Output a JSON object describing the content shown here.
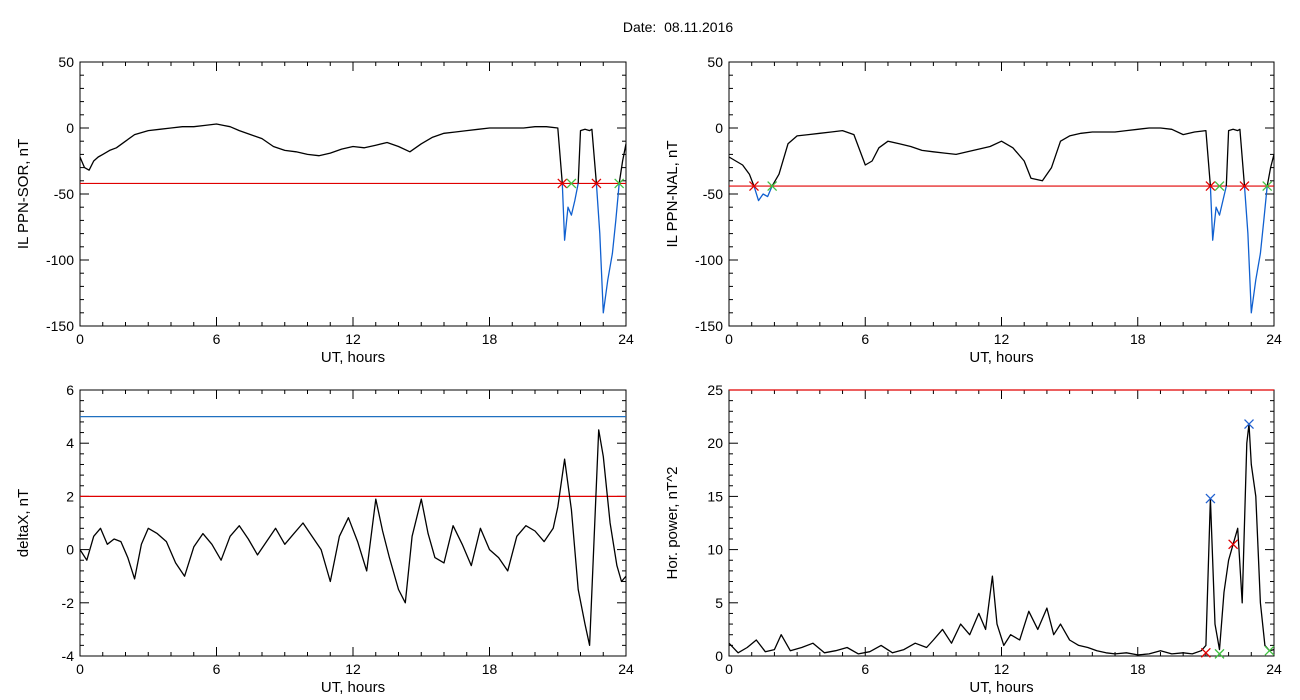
{
  "figure": {
    "date_label": "Date:",
    "date_value": "08.11.2016"
  },
  "chart_data": [
    {
      "type": "line",
      "xlabel": "UT, hours",
      "ylabel": "IL PPN-SOR, nT",
      "xlim": [
        0,
        24
      ],
      "ylim": [
        -150,
        50
      ],
      "xticks": [
        0,
        6,
        12,
        18,
        24
      ],
      "yticks": [
        -150,
        -100,
        -50,
        0,
        50
      ],
      "grid": false,
      "hlines": [
        {
          "y": -42,
          "color": "#e00000"
        }
      ],
      "series": [
        {
          "color": "#000000",
          "x": [
            0,
            0.2,
            0.4,
            0.6,
            0.8,
            1,
            1.3,
            1.6,
            2,
            2.4,
            3,
            3.5,
            4,
            4.5,
            5,
            5.5,
            6,
            6.3,
            6.6,
            7,
            7.5,
            8,
            8.5,
            9,
            9.5,
            10,
            10.5,
            11,
            11.5,
            12,
            12.5,
            13,
            13.5,
            14,
            14.5,
            15,
            15.5,
            16,
            16.5,
            17,
            17.5,
            18,
            18.5,
            19,
            19.5,
            20,
            20.5,
            21,
            21.2
          ],
          "y": [
            -22,
            -30,
            -32,
            -25,
            -22,
            -20,
            -17,
            -15,
            -10,
            -5,
            -2,
            -1,
            0,
            1,
            1,
            2,
            3,
            2,
            1,
            -2,
            -5,
            -8,
            -14,
            -17,
            -18,
            -20,
            -21,
            -19,
            -16,
            -14,
            -15,
            -13,
            -11,
            -14,
            -18,
            -12,
            -7,
            -4,
            -3,
            -2,
            -1,
            0,
            0,
            0,
            0,
            1,
            1,
            0,
            -42
          ]
        },
        {
          "color": "#1060d0",
          "x": [
            21.2,
            21.3,
            21.45,
            21.6,
            21.75,
            21.9
          ],
          "y": [
            -42,
            -85,
            -60,
            -66,
            -55,
            -42
          ]
        },
        {
          "color": "#000000",
          "x": [
            21.9,
            22.0,
            22.2,
            22.4,
            22.5,
            22.7
          ],
          "y": [
            -42,
            -2,
            -1,
            -2,
            -1,
            -42
          ]
        },
        {
          "color": "#1060d0",
          "x": [
            22.7,
            22.85,
            23.0,
            23.2,
            23.4,
            23.55,
            23.7
          ],
          "y": [
            -42,
            -80,
            -140,
            -115,
            -95,
            -70,
            -42
          ]
        },
        {
          "color": "#000000",
          "x": [
            23.7,
            23.85,
            24
          ],
          "y": [
            -42,
            -25,
            -12
          ]
        }
      ],
      "markers": [
        {
          "x": 21.2,
          "y": -42,
          "color": "#e00000"
        },
        {
          "x": 21.6,
          "y": -42,
          "color": "#40c040"
        },
        {
          "x": 22.7,
          "y": -42,
          "color": "#e00000"
        },
        {
          "x": 23.7,
          "y": -42,
          "color": "#40c040"
        }
      ]
    },
    {
      "type": "line",
      "xlabel": "UT, hours",
      "ylabel": "IL PPN-NAL, nT",
      "xlim": [
        0,
        24
      ],
      "ylim": [
        -150,
        50
      ],
      "xticks": [
        0,
        6,
        12,
        18,
        24
      ],
      "yticks": [
        -150,
        -100,
        -50,
        0,
        50
      ],
      "grid": false,
      "hlines": [
        {
          "y": -44,
          "color": "#e00000"
        }
      ],
      "series": [
        {
          "color": "#000000",
          "x": [
            0,
            0.3,
            0.6,
            0.9,
            1.1
          ],
          "y": [
            -22,
            -25,
            -28,
            -35,
            -44
          ]
        },
        {
          "color": "#1060d0",
          "x": [
            1.1,
            1.3,
            1.5,
            1.7,
            1.9
          ],
          "y": [
            -44,
            -55,
            -50,
            -52,
            -44
          ]
        },
        {
          "color": "#000000",
          "x": [
            1.9,
            2.2,
            2.6,
            3,
            3.5,
            4,
            4.5,
            5,
            5.5,
            6,
            6.3,
            6.6,
            7,
            7.5,
            8,
            8.5,
            9,
            9.5,
            10,
            10.5,
            11,
            11.5,
            12,
            12.5,
            13,
            13.3,
            13.8,
            14.2,
            14.6,
            15,
            15.5,
            16,
            16.5,
            17,
            17.5,
            18,
            18.5,
            19,
            19.5,
            20,
            20.5,
            21,
            21.2
          ],
          "y": [
            -44,
            -35,
            -12,
            -6,
            -5,
            -4,
            -3,
            -2,
            -5,
            -28,
            -25,
            -15,
            -10,
            -12,
            -14,
            -17,
            -18,
            -19,
            -20,
            -18,
            -16,
            -14,
            -10,
            -15,
            -25,
            -38,
            -40,
            -30,
            -10,
            -6,
            -4,
            -3,
            -3,
            -3,
            -2,
            -1,
            0,
            0,
            -1,
            -5,
            -3,
            -2,
            -44
          ]
        },
        {
          "color": "#1060d0",
          "x": [
            21.2,
            21.3,
            21.45,
            21.6,
            21.75,
            21.9
          ],
          "y": [
            -44,
            -85,
            -60,
            -66,
            -55,
            -44
          ]
        },
        {
          "color": "#000000",
          "x": [
            21.9,
            22.0,
            22.2,
            22.4,
            22.5,
            22.7
          ],
          "y": [
            -44,
            -2,
            -1,
            -2,
            -1,
            -44
          ]
        },
        {
          "color": "#1060d0",
          "x": [
            22.7,
            22.85,
            23.0,
            23.2,
            23.4,
            23.55,
            23.7
          ],
          "y": [
            -44,
            -80,
            -140,
            -115,
            -95,
            -70,
            -44
          ]
        },
        {
          "color": "#000000",
          "x": [
            23.7,
            23.85,
            24
          ],
          "y": [
            -44,
            -30,
            -20
          ]
        }
      ],
      "markers": [
        {
          "x": 1.1,
          "y": -44,
          "color": "#e00000"
        },
        {
          "x": 1.9,
          "y": -44,
          "color": "#40c040"
        },
        {
          "x": 21.2,
          "y": -44,
          "color": "#e00000"
        },
        {
          "x": 21.6,
          "y": -44,
          "color": "#40c040"
        },
        {
          "x": 22.7,
          "y": -44,
          "color": "#e00000"
        },
        {
          "x": 23.7,
          "y": -44,
          "color": "#40c040"
        }
      ]
    },
    {
      "type": "line",
      "xlabel": "UT, hours",
      "ylabel": "deltaX, nT",
      "xlim": [
        0,
        24
      ],
      "ylim": [
        -4,
        6
      ],
      "xticks": [
        0,
        6,
        12,
        18,
        24
      ],
      "yticks": [
        -4,
        -2,
        0,
        2,
        4,
        6
      ],
      "grid": false,
      "hlines": [
        {
          "y": 5,
          "color": "#2070c0"
        },
        {
          "y": 2,
          "color": "#e00000"
        }
      ],
      "series": [
        {
          "color": "#000000",
          "x": [
            0,
            0.3,
            0.6,
            0.9,
            1.2,
            1.5,
            1.8,
            2.1,
            2.4,
            2.7,
            3.0,
            3.4,
            3.8,
            4.2,
            4.6,
            5.0,
            5.4,
            5.8,
            6.2,
            6.6,
            7.0,
            7.4,
            7.8,
            8.2,
            8.6,
            9.0,
            9.4,
            9.8,
            10.2,
            10.6,
            11.0,
            11.4,
            11.8,
            12.2,
            12.6,
            13.0,
            13.3,
            13.6,
            14.0,
            14.3,
            14.6,
            15.0,
            15.3,
            15.6,
            16.0,
            16.4,
            16.8,
            17.2,
            17.6,
            18.0,
            18.4,
            18.8,
            19.2,
            19.6,
            20.0,
            20.4,
            20.8,
            21.0,
            21.3,
            21.6,
            21.9,
            22.2,
            22.4,
            22.6,
            22.8,
            23.0,
            23.3,
            23.6,
            23.8,
            24.0
          ],
          "y": [
            0,
            -0.4,
            0.5,
            0.8,
            0.2,
            0.4,
            0.3,
            -0.3,
            -1.1,
            0.2,
            0.8,
            0.6,
            0.3,
            -0.5,
            -1.0,
            0.1,
            0.6,
            0.2,
            -0.4,
            0.5,
            0.9,
            0.4,
            -0.2,
            0.3,
            0.8,
            0.2,
            0.6,
            1.0,
            0.5,
            0.0,
            -1.2,
            0.5,
            1.2,
            0.3,
            -0.8,
            1.9,
            0.7,
            -0.3,
            -1.5,
            -2.0,
            0.5,
            1.9,
            0.6,
            -0.3,
            -0.5,
            0.9,
            0.2,
            -0.6,
            0.8,
            0.0,
            -0.3,
            -0.8,
            0.5,
            0.9,
            0.7,
            0.3,
            0.8,
            1.6,
            3.4,
            1.5,
            -1.5,
            -2.8,
            -3.6,
            0.5,
            4.5,
            3.5,
            1.0,
            -0.6,
            -1.2,
            -1.0
          ]
        }
      ],
      "markers": []
    },
    {
      "type": "line",
      "xlabel": "UT, hours",
      "ylabel": "Hor. power, nT^2",
      "xlim": [
        0,
        24
      ],
      "ylim": [
        0,
        25
      ],
      "xticks": [
        0,
        6,
        12,
        18,
        24
      ],
      "yticks": [
        0,
        5,
        10,
        15,
        20,
        25
      ],
      "grid": false,
      "hlines": [
        {
          "y": 25,
          "color": "#e00000"
        }
      ],
      "series": [
        {
          "color": "#000000",
          "x": [
            0,
            0.4,
            0.8,
            1.2,
            1.6,
            2.0,
            2.3,
            2.7,
            3.2,
            3.7,
            4.2,
            4.7,
            5.2,
            5.7,
            6.2,
            6.7,
            7.2,
            7.7,
            8.2,
            8.7,
            9.0,
            9.4,
            9.8,
            10.2,
            10.6,
            11.0,
            11.3,
            11.6,
            11.8,
            12.1,
            12.4,
            12.8,
            13.2,
            13.6,
            14.0,
            14.3,
            14.6,
            15.0,
            15.4,
            15.8,
            16.2,
            16.6,
            17.0,
            17.5,
            18.0,
            18.5,
            19.0,
            19.5,
            20.0,
            20.4,
            20.8,
            21.0,
            21.2,
            21.4,
            21.6,
            21.8,
            22.0,
            22.2,
            22.4,
            22.6,
            22.8,
            22.9,
            23.0,
            23.2,
            23.4,
            23.6,
            23.8,
            24.0
          ],
          "y": [
            1.2,
            0.3,
            0.8,
            1.5,
            0.4,
            0.6,
            2.0,
            0.5,
            0.8,
            1.2,
            0.3,
            0.5,
            0.8,
            0.2,
            0.4,
            1.0,
            0.3,
            0.6,
            1.2,
            0.8,
            1.5,
            2.5,
            1.2,
            3.0,
            2.0,
            4.0,
            2.5,
            7.5,
            3.0,
            1.0,
            2.0,
            1.5,
            4.2,
            2.5,
            4.5,
            2.0,
            3.0,
            1.5,
            1.0,
            0.8,
            0.5,
            0.3,
            0.2,
            0.3,
            0.1,
            0.2,
            0.5,
            0.2,
            0.3,
            0.2,
            0.5,
            1.0,
            14.8,
            3.0,
            0.6,
            6.0,
            9.0,
            10.5,
            12.0,
            5.0,
            20.0,
            21.8,
            18.0,
            15.0,
            5.0,
            1.0,
            0.5,
            0.6
          ]
        }
      ],
      "markers": [
        {
          "x": 21.2,
          "y": 14.8,
          "color": "#2060d0"
        },
        {
          "x": 22.9,
          "y": 21.8,
          "color": "#2060d0"
        },
        {
          "x": 22.2,
          "y": 10.5,
          "color": "#e00000"
        },
        {
          "x": 21.6,
          "y": 0.2,
          "color": "#40c040"
        },
        {
          "x": 23.8,
          "y": 0.5,
          "color": "#40c040"
        },
        {
          "x": 21.0,
          "y": 0.3,
          "color": "#e00000"
        }
      ]
    }
  ]
}
